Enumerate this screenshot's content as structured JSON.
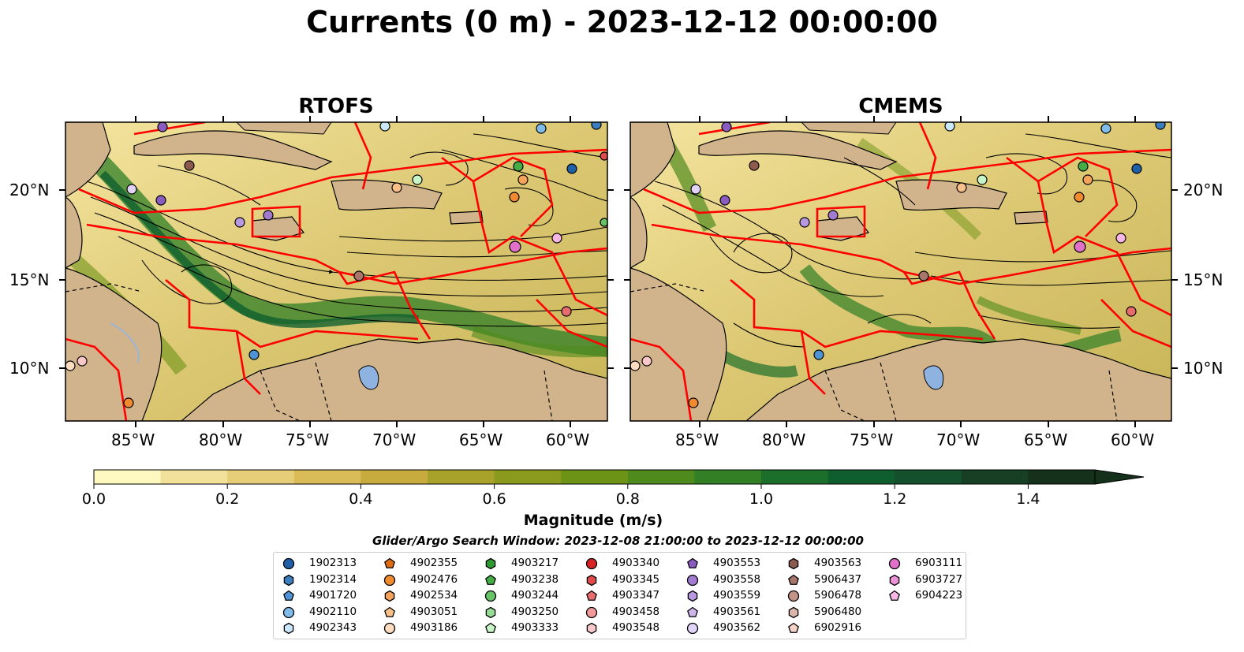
{
  "title": "Currents (0 m) - 2023-12-12 00:00:00",
  "panels": [
    {
      "title": "RTOFS"
    },
    {
      "title": "CMEMS"
    }
  ],
  "lat_ticks": [
    "20°N",
    "15°N",
    "10°N"
  ],
  "lon_ticks": [
    "85°W",
    "80°W",
    "75°W",
    "70°W",
    "65°W",
    "60°W"
  ],
  "colorbar": {
    "label": "Magnitude (m/s)",
    "ticks": [
      "0.0",
      "0.2",
      "0.4",
      "0.6",
      "0.8",
      "1.0",
      "1.2",
      "1.4"
    ],
    "range": [
      0,
      1.5
    ],
    "extend": "max",
    "colors": [
      "#fdf7c0",
      "#f2e19a",
      "#e6cd78",
      "#d9bb58",
      "#c7ab3e",
      "#a9a22a",
      "#8a9a1c",
      "#6c9316",
      "#4f8a1d",
      "#327f25",
      "#1b6f2b",
      "#0f5f2e",
      "#14502c",
      "#173f24",
      "#15301b"
    ]
  },
  "search_window": "Glider/Argo Search Window: 2023-12-08 21:00:00 to 2023-12-12 00:00:00",
  "legend": [
    {
      "id": "1902313",
      "shape": "circle",
      "color": "#1f5fa8"
    },
    {
      "id": "1902314",
      "shape": "hexagon",
      "color": "#3a7ec0"
    },
    {
      "id": "4901720",
      "shape": "pentagon",
      "color": "#4f93d4"
    },
    {
      "id": "4902110",
      "shape": "circle",
      "color": "#7fbcea"
    },
    {
      "id": "4902343",
      "shape": "hexagon",
      "color": "#c9e8fb"
    },
    {
      "id": "4902355",
      "shape": "pentagon",
      "color": "#e06a10"
    },
    {
      "id": "4902476",
      "shape": "circle",
      "color": "#f08a2e"
    },
    {
      "id": "4902534",
      "shape": "hexagon",
      "color": "#f5a35a"
    },
    {
      "id": "4903051",
      "shape": "pentagon",
      "color": "#f9c08a"
    },
    {
      "id": "4903186",
      "shape": "circle",
      "color": "#fddcc0"
    },
    {
      "id": "4903217",
      "shape": "hexagon",
      "color": "#2c9a2c"
    },
    {
      "id": "4903238",
      "shape": "pentagon",
      "color": "#44ad44"
    },
    {
      "id": "4903244",
      "shape": "circle",
      "color": "#66c466"
    },
    {
      "id": "4903250",
      "shape": "hexagon",
      "color": "#95dc95"
    },
    {
      "id": "4903333",
      "shape": "pentagon",
      "color": "#c8f5c8"
    },
    {
      "id": "4903340",
      "shape": "circle",
      "color": "#d62222"
    },
    {
      "id": "4903345",
      "shape": "hexagon",
      "color": "#e04a4a"
    },
    {
      "id": "4903347",
      "shape": "pentagon",
      "color": "#e86c6c"
    },
    {
      "id": "4903458",
      "shape": "circle",
      "color": "#f29a9a"
    },
    {
      "id": "4903548",
      "shape": "hexagon",
      "color": "#fac8c8"
    },
    {
      "id": "4903553",
      "shape": "pentagon",
      "color": "#8a5cc0"
    },
    {
      "id": "4903558",
      "shape": "circle",
      "color": "#a27ad0"
    },
    {
      "id": "4903559",
      "shape": "hexagon",
      "color": "#b898e0"
    },
    {
      "id": "4903561",
      "shape": "pentagon",
      "color": "#cdb5ec"
    },
    {
      "id": "4903562",
      "shape": "circle",
      "color": "#e2d3f8"
    },
    {
      "id": "4903563",
      "shape": "hexagon",
      "color": "#8c5a4e"
    },
    {
      "id": "5906437",
      "shape": "pentagon",
      "color": "#a8766a"
    },
    {
      "id": "5906478",
      "shape": "circle",
      "color": "#c49488"
    },
    {
      "id": "5906480",
      "shape": "hexagon",
      "color": "#dbb4aa"
    },
    {
      "id": "6902916",
      "shape": "pentagon",
      "color": "#f6d2c6"
    },
    {
      "id": "6903111",
      "shape": "circle",
      "color": "#e070c8"
    },
    {
      "id": "6903727",
      "shape": "hexagon",
      "color": "#ec92d8"
    },
    {
      "id": "6904223",
      "shape": "pentagon",
      "color": "#f6b6e6"
    }
  ],
  "colors": {
    "land": "#d2b48c",
    "eez_lines": "#ff0000",
    "streamlines": "#000000",
    "lakes": "#9bb5d9"
  }
}
